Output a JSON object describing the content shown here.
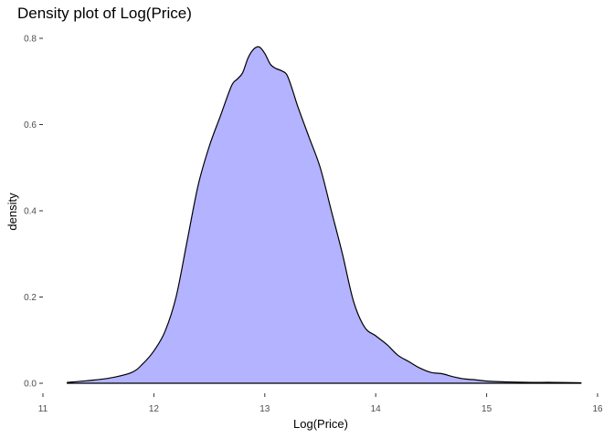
{
  "chart_data": {
    "type": "area",
    "title": "Density plot of Log(Price)",
    "xlabel": "Log(Price)",
    "ylabel": "density",
    "xlim": [
      11,
      16
    ],
    "ylim": [
      0,
      0.8
    ],
    "x_ticks": [
      11,
      12,
      13,
      14,
      15,
      16
    ],
    "y_ticks": [
      0.0,
      0.2,
      0.4,
      0.6,
      0.8
    ],
    "y_tick_labels": [
      "0.0",
      "0.2",
      "0.4",
      "0.6",
      "0.8"
    ],
    "grid": false,
    "fill_color": "#b3b3ff",
    "line_color": "#000000",
    "series": [
      {
        "x": [
          11.22,
          11.4,
          11.6,
          11.8,
          11.9,
          12.0,
          12.1,
          12.2,
          12.3,
          12.4,
          12.5,
          12.6,
          12.7,
          12.75,
          12.8,
          12.85,
          12.9,
          12.95,
          13.0,
          13.05,
          13.1,
          13.15,
          13.2,
          13.25,
          13.3,
          13.4,
          13.5,
          13.6,
          13.7,
          13.8,
          13.9,
          14.0,
          14.1,
          14.2,
          14.3,
          14.4,
          14.5,
          14.6,
          14.7,
          14.8,
          14.9,
          15.0,
          15.2,
          15.4,
          15.6,
          15.85
        ],
        "y": [
          0.002,
          0.006,
          0.012,
          0.025,
          0.045,
          0.075,
          0.12,
          0.2,
          0.33,
          0.46,
          0.55,
          0.62,
          0.69,
          0.705,
          0.72,
          0.755,
          0.775,
          0.78,
          0.765,
          0.74,
          0.73,
          0.725,
          0.715,
          0.68,
          0.64,
          0.57,
          0.5,
          0.4,
          0.3,
          0.19,
          0.13,
          0.11,
          0.09,
          0.065,
          0.05,
          0.035,
          0.025,
          0.022,
          0.015,
          0.01,
          0.008,
          0.005,
          0.003,
          0.002,
          0.002,
          0.001
        ]
      }
    ]
  }
}
